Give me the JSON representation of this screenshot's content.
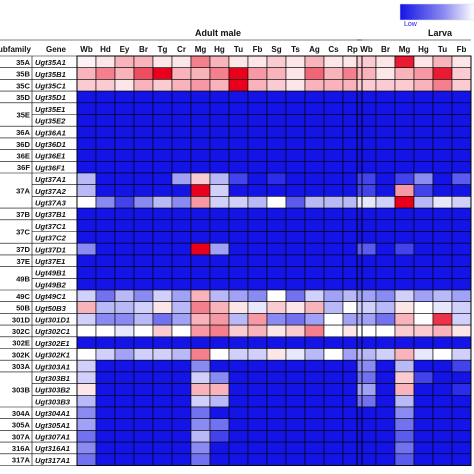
{
  "chart_data": {
    "type": "heatmap",
    "legend": {
      "low_label": "Low"
    },
    "palette": {
      "high": "#e8001c",
      "mid": "#ffffff",
      "low": "#1414e6"
    },
    "headers": {
      "subfamily": "ubfamily",
      "gene": "Gene"
    },
    "panels": [
      {
        "title": "Adult male",
        "columns": [
          "Wb",
          "Hd",
          "Ey",
          "Br",
          "Tg",
          "Cr",
          "Mg",
          "Hg",
          "Tu",
          "Fb",
          "Sg",
          "Ts",
          "Ag",
          "Cs",
          "Rp"
        ]
      },
      {
        "title": "Larva",
        "columns": [
          "Wb",
          "Br",
          "Mg",
          "Hg",
          "Tu",
          "Fb"
        ]
      }
    ],
    "subfamilies": [
      {
        "label": "35A",
        "start": 0,
        "span": 1
      },
      {
        "label": "35B",
        "start": 1,
        "span": 1
      },
      {
        "label": "35C",
        "start": 2,
        "span": 1
      },
      {
        "label": "35D",
        "start": 3,
        "span": 1
      },
      {
        "label": "35E",
        "start": 4,
        "span": 2
      },
      {
        "label": "36A",
        "start": 6,
        "span": 1
      },
      {
        "label": "36D",
        "start": 7,
        "span": 1
      },
      {
        "label": "36E",
        "start": 8,
        "span": 1
      },
      {
        "label": "36F",
        "start": 9,
        "span": 1
      },
      {
        "label": "37A",
        "start": 10,
        "span": 3
      },
      {
        "label": "37B",
        "start": 13,
        "span": 1
      },
      {
        "label": "37C",
        "start": 14,
        "span": 2
      },
      {
        "label": "37D",
        "start": 16,
        "span": 1
      },
      {
        "label": "37E",
        "start": 17,
        "span": 1
      },
      {
        "label": "49B",
        "start": 18,
        "span": 2
      },
      {
        "label": "49C",
        "start": 20,
        "span": 1
      },
      {
        "label": "50B",
        "start": 21,
        "span": 1
      },
      {
        "label": "301D",
        "start": 22,
        "span": 1
      },
      {
        "label": "302C",
        "start": 23,
        "span": 1
      },
      {
        "label": "302E",
        "start": 24,
        "span": 1
      },
      {
        "label": "302K",
        "start": 25,
        "span": 1
      },
      {
        "label": "303A",
        "start": 26,
        "span": 1
      },
      {
        "label": "303B",
        "start": 27,
        "span": 3
      },
      {
        "label": "304A",
        "start": 30,
        "span": 1
      },
      {
        "label": "305A",
        "start": 31,
        "span": 1
      },
      {
        "label": "307A",
        "start": 32,
        "span": 1
      },
      {
        "label": "316A",
        "start": 33,
        "span": 1
      },
      {
        "label": "317A",
        "start": 34,
        "span": 1
      }
    ],
    "rows": [
      {
        "gene": "Ugt35A1",
        "values": [
          0.05,
          0.1,
          0.3,
          0.3,
          0.1,
          0.1,
          0.5,
          0.3,
          0.1,
          0.1,
          0.2,
          0.1,
          0.3,
          0.1,
          0.1,
          0.2,
          0.1,
          0.9,
          0.1,
          0.3,
          0.1
        ]
      },
      {
        "gene": "Ugt35B1",
        "values": [
          0.3,
          0.5,
          0.3,
          0.7,
          1.0,
          0.3,
          0.3,
          0.5,
          1.0,
          0.4,
          0.3,
          0.1,
          0.6,
          0.3,
          0.5,
          0.3,
          0.1,
          0.3,
          0.4,
          0.9,
          0.2
        ]
      },
      {
        "gene": "Ugt35C1",
        "values": [
          0.2,
          0.2,
          0.1,
          0.3,
          0.2,
          0.3,
          0.4,
          0.3,
          1.0,
          0.3,
          0.2,
          0.1,
          0.3,
          0.3,
          0.3,
          0.2,
          0.2,
          0.2,
          0.3,
          0.5,
          0.2
        ]
      },
      {
        "gene": "Ugt35D1",
        "values": [
          -1,
          -1,
          -1,
          -1,
          -1,
          -1,
          -1,
          -1,
          -1,
          -1,
          -1,
          -1,
          -1,
          -1,
          -1,
          -1,
          -1,
          -1,
          -1,
          -1,
          -1
        ]
      },
      {
        "gene": "Ugt35E1",
        "values": [
          -1,
          -1,
          -1,
          -1,
          -1,
          -1,
          -1,
          -1,
          -1,
          -1,
          -1,
          -1,
          -1,
          -1,
          -1,
          -1,
          -1,
          -1,
          -1,
          -1,
          -1
        ]
      },
      {
        "gene": "Ugt35E2",
        "values": [
          -1,
          -1,
          -1,
          -1,
          -1,
          -1,
          -1,
          -1,
          -1,
          -1,
          -1,
          -1,
          -1,
          -1,
          -1,
          -1,
          -1,
          -1,
          -1,
          -1,
          -1
        ]
      },
      {
        "gene": "Ugt36A1",
        "values": [
          -1,
          -1,
          -1,
          -1,
          -1,
          -1,
          -1,
          -1,
          -1,
          -1,
          -1,
          -1,
          -1,
          -1,
          -1,
          -1,
          -1,
          -1,
          -1,
          -1,
          -1
        ]
      },
      {
        "gene": "Ugt36D1",
        "values": [
          -1,
          -1,
          -1,
          -1,
          -1,
          -1,
          -1,
          -1,
          -1,
          -1,
          -1,
          -1,
          -1,
          -1,
          -1,
          -1,
          -1,
          -1,
          -1,
          -1,
          -1
        ]
      },
      {
        "gene": "Ugt36E1",
        "values": [
          -1,
          -1,
          -1,
          -1,
          -1,
          -1,
          -1,
          -1,
          -1,
          -1,
          -1,
          -1,
          -1,
          -1,
          -1,
          -1,
          -1,
          -1,
          -1,
          -1,
          -1
        ]
      },
      {
        "gene": "Ugt36F1",
        "values": [
          -1,
          -1,
          -1,
          -1,
          -1,
          -1,
          -1,
          -1,
          -1,
          -1,
          -1,
          -1,
          -1,
          -1,
          -1,
          -1,
          -1,
          -1,
          -1,
          -1,
          -1
        ]
      },
      {
        "gene": "Ugt37A1",
        "values": [
          -0.3,
          -1,
          -1,
          -1,
          -1,
          -0.4,
          0.2,
          -0.3,
          -0.8,
          -1,
          -0.9,
          -1,
          -1,
          -1,
          -1,
          -0.8,
          -1,
          -0.8,
          -0.5,
          -1,
          -0.7
        ]
      },
      {
        "gene": "Ugt37A2",
        "values": [
          -0.3,
          -1,
          -1,
          -1,
          -1,
          -1,
          1.0,
          -0.2,
          -1,
          -1,
          -1,
          -1,
          -1,
          -1,
          -1,
          -0.8,
          -1,
          0.4,
          -0.8,
          -1,
          -1
        ]
      },
      {
        "gene": "Ugt37A3",
        "values": [
          0.0,
          -0.5,
          -0.8,
          -0.5,
          -0.3,
          -0.5,
          0.4,
          -0.2,
          -0.2,
          -0.3,
          0.0,
          -0.7,
          -0.3,
          -0.3,
          -0.3,
          -0.1,
          -0.2,
          1.0,
          -0.3,
          -0.1,
          -0.2
        ]
      },
      {
        "gene": "Ugt37B1",
        "values": [
          -1,
          -1,
          -1,
          -1,
          -1,
          -1,
          -1,
          -1,
          -1,
          -1,
          -1,
          -1,
          -1,
          -1,
          -1,
          -1,
          -1,
          -1,
          -1,
          -1,
          -1
        ]
      },
      {
        "gene": "Ugt37C1",
        "values": [
          -1,
          -1,
          -1,
          -1,
          -1,
          -1,
          -1,
          -1,
          -1,
          -1,
          -1,
          -1,
          -1,
          -1,
          -1,
          -1,
          -1,
          -1,
          -1,
          -1,
          -1
        ]
      },
      {
        "gene": "Ugt37C2",
        "values": [
          -1,
          -1,
          -1,
          -1,
          -1,
          -1,
          -1,
          -1,
          -1,
          -1,
          -1,
          -1,
          -1,
          -1,
          -1,
          -1,
          -1,
          -1,
          -1,
          -1,
          -1
        ]
      },
      {
        "gene": "Ugt37D1",
        "values": [
          -0.5,
          -1,
          -1,
          -1,
          -1,
          -1,
          1.0,
          -0.4,
          -1,
          -1,
          -1,
          -1,
          -1,
          -1,
          -1,
          -0.7,
          -1,
          -0.8,
          -1,
          -1,
          -1
        ]
      },
      {
        "gene": "Ugt37E1",
        "values": [
          -1,
          -1,
          -1,
          -1,
          -1,
          -1,
          -1,
          -1,
          -1,
          -1,
          -1,
          -1,
          -1,
          -1,
          -1,
          -1,
          -1,
          -1,
          -1,
          -1,
          -1
        ]
      },
      {
        "gene": "Ugt49B1",
        "values": [
          -1,
          -1,
          -1,
          -1,
          -1,
          -1,
          -1,
          -1,
          -1,
          -1,
          -1,
          -1,
          -1,
          -1,
          -1,
          -1,
          -1,
          -1,
          -1,
          -1,
          -1
        ]
      },
      {
        "gene": "Ugt49B2",
        "values": [
          -1,
          -1,
          -1,
          -1,
          -1,
          -1,
          -1,
          -1,
          -1,
          -1,
          -1,
          -1,
          -1,
          -1,
          -1,
          -1,
          -1,
          -1,
          -1,
          -1,
          -1
        ]
      },
      {
        "gene": "Ugt49C1",
        "values": [
          -0.2,
          -0.6,
          -0.3,
          -0.5,
          -0.2,
          -0.4,
          0.3,
          -0.3,
          -0.4,
          -0.5,
          0.0,
          -0.6,
          -0.2,
          -0.4,
          -0.3,
          -0.4,
          -0.5,
          -0.2,
          -0.4,
          -0.3,
          -0.4
        ]
      },
      {
        "gene": "Ugt50B3",
        "values": [
          0.3,
          -0.3,
          -0.3,
          -0.2,
          0.1,
          -0.3,
          0.5,
          0.3,
          0.1,
          -0.1,
          0.2,
          0.1,
          0.3,
          -0.3,
          0.0,
          -0.2,
          -0.3,
          0.1,
          0.0,
          -0.1,
          -0.2
        ]
      },
      {
        "gene": "Ugt301D1",
        "values": [
          -0.2,
          -0.5,
          -0.5,
          -0.3,
          -0.6,
          -0.4,
          0.3,
          0.4,
          -0.3,
          0.4,
          -0.5,
          -0.6,
          -0.4,
          0.0,
          -0.4,
          -0.4,
          -0.6,
          0.3,
          0.0,
          0.8,
          -0.2
        ]
      },
      {
        "gene": "Ugt302C1",
        "values": [
          0.0,
          0.0,
          -0.1,
          0.0,
          0.2,
          0.0,
          0.4,
          0.5,
          0.2,
          0.3,
          0.1,
          0.2,
          0.5,
          0.0,
          0.1,
          0.0,
          0.0,
          0.2,
          0.2,
          0.3,
          0.1
        ]
      },
      {
        "gene": "Ugt302E1",
        "values": [
          -1,
          -1,
          -1,
          -1,
          -1,
          -1,
          -1,
          -1,
          -1,
          -1,
          -1,
          -1,
          -1,
          -1,
          -1,
          -1,
          -1,
          -1,
          -1,
          -1,
          -1
        ]
      },
      {
        "gene": "Ugt302K1",
        "values": [
          0.0,
          -0.2,
          -0.4,
          -0.2,
          -0.2,
          -0.3,
          0.5,
          0.0,
          -0.2,
          -0.2,
          0.1,
          -0.1,
          -0.3,
          0.0,
          -0.4,
          -0.3,
          -0.2,
          0.3,
          -0.1,
          0.0,
          -0.2
        ]
      },
      {
        "gene": "Ugt303A1",
        "values": [
          -0.2,
          -1,
          -1,
          -1,
          -1,
          -1,
          -0.5,
          -1,
          -1,
          -1,
          -1,
          -1,
          -1,
          -1,
          -1,
          -0.5,
          -1,
          -0.3,
          -1,
          -1,
          -0.8
        ]
      },
      {
        "gene": "Ugt303B1",
        "values": [
          -0.2,
          -1,
          -1,
          -1,
          -1,
          -1,
          -0.2,
          -0.5,
          -1,
          -1,
          -1,
          -1,
          -1,
          -1,
          -1,
          -0.6,
          -1,
          0.2,
          -0.8,
          -1,
          -1
        ]
      },
      {
        "gene": "Ugt303B2",
        "values": [
          0.1,
          -1,
          -1,
          -1,
          -1,
          -1,
          0.3,
          0.3,
          -1,
          -1,
          -1,
          -1,
          -1,
          -1,
          -1,
          -0.4,
          -1,
          0.3,
          -1,
          -1,
          -0.9
        ]
      },
      {
        "gene": "Ugt303B3",
        "values": [
          -0.3,
          -1,
          -1,
          -1,
          -1,
          -1,
          -0.2,
          -0.3,
          -1,
          -1,
          -1,
          -1,
          -1,
          -1,
          -1,
          -0.6,
          -1,
          -0.3,
          -1,
          -1,
          -1
        ]
      },
      {
        "gene": "Ugt304A1",
        "values": [
          -0.5,
          -1,
          -1,
          -1,
          -1,
          -1,
          -0.6,
          -1,
          -1,
          -1,
          -1,
          -1,
          -1,
          -1,
          -1,
          -1,
          -1,
          -0.5,
          -1,
          -1,
          -1
        ]
      },
      {
        "gene": "Ugt305A1",
        "values": [
          -0.4,
          -1,
          -1,
          -1,
          -1,
          -1,
          -0.5,
          -0.6,
          -1,
          -1,
          -1,
          -1,
          -1,
          -1,
          -1,
          -1,
          -1,
          -0.6,
          -1,
          -1,
          -1
        ]
      },
      {
        "gene": "Ugt307A1",
        "values": [
          -0.6,
          -1,
          -1,
          -1,
          -1,
          -1,
          -0.3,
          -0.8,
          -1,
          -1,
          -1,
          -1,
          -1,
          -1,
          -1,
          -1,
          -1,
          -0.7,
          -1,
          -1,
          -1
        ]
      },
      {
        "gene": "Ugt316A1",
        "values": [
          -0.5,
          -1,
          -1,
          -1,
          -1,
          -1,
          -0.5,
          -1,
          -1,
          -1,
          -1,
          -1,
          -1,
          -1,
          -1,
          -1,
          -1,
          -0.6,
          -1,
          -1,
          -1
        ]
      },
      {
        "gene": "Ugt317A1",
        "values": [
          -0.6,
          -1,
          -1,
          -1,
          -1,
          -1,
          -0.6,
          -1,
          -1,
          -1,
          -1,
          -1,
          -1,
          -1,
          -1,
          -1,
          -1,
          -0.7,
          -1,
          -1,
          -1
        ]
      }
    ]
  }
}
